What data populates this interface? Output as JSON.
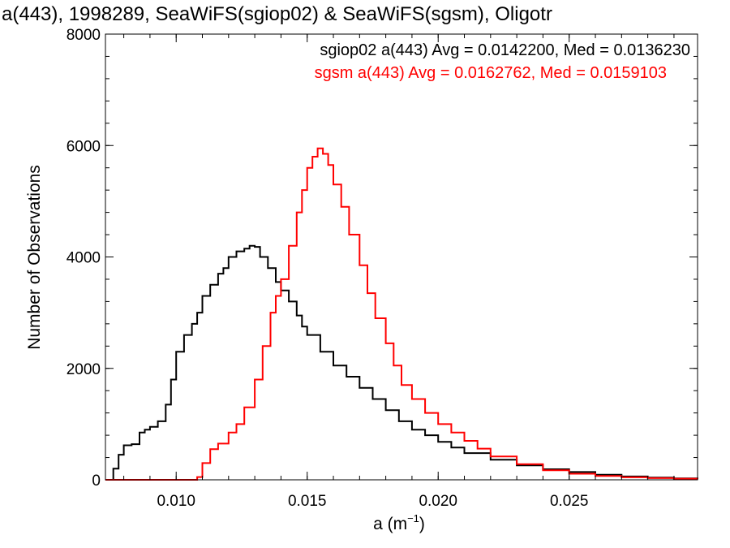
{
  "chart_data": {
    "type": "line",
    "step": true,
    "title": "a(443), 1998289, SeaWiFS(sgiop02) & SeaWiFS(sgsm), Oligotr",
    "xlabel_base": "a (m",
    "xlabel_sup": "−1",
    "xlabel_close": ")",
    "ylabel": "Number of Observations",
    "xlim": [
      0.0073,
      0.0299
    ],
    "ylim": [
      0,
      8000
    ],
    "xticks": [
      0.01,
      0.015,
      0.02,
      0.025
    ],
    "xtick_labels": [
      "0.010",
      "0.015",
      "0.020",
      "0.025"
    ],
    "yticks": [
      0,
      2000,
      4000,
      6000,
      8000
    ],
    "ytick_labels": [
      "0",
      "2000",
      "4000",
      "6000",
      "8000"
    ],
    "grid": false,
    "annotations": [
      {
        "text": "sgiop02 a(443) Avg = 0.0142200, Med = 0.0136230",
        "color": "#000000"
      },
      {
        "text": "sgsm a(443) Avg = 0.0162762, Med = 0.0159103",
        "color": "#ff0000"
      }
    ],
    "series": [
      {
        "name": "sgiop02",
        "color": "#000000",
        "x": [
          0.0073,
          0.0076,
          0.0078,
          0.008,
          0.0083,
          0.0086,
          0.0088,
          0.009,
          0.0093,
          0.0096,
          0.0098,
          0.01,
          0.0103,
          0.0106,
          0.0108,
          0.011,
          0.0113,
          0.0116,
          0.0118,
          0.012,
          0.0123,
          0.0126,
          0.0128,
          0.013,
          0.0132,
          0.0135,
          0.0138,
          0.014,
          0.0143,
          0.0146,
          0.0148,
          0.015,
          0.0155,
          0.016,
          0.0165,
          0.017,
          0.0175,
          0.018,
          0.0185,
          0.019,
          0.0195,
          0.02,
          0.0205,
          0.021,
          0.022,
          0.023,
          0.024,
          0.025,
          0.026,
          0.027,
          0.028,
          0.029,
          0.0299
        ],
        "y": [
          0,
          200,
          450,
          620,
          640,
          850,
          900,
          950,
          1050,
          1350,
          1800,
          2300,
          2600,
          2800,
          3000,
          3300,
          3500,
          3700,
          3800,
          4000,
          4100,
          4150,
          4200,
          4180,
          4000,
          3800,
          3550,
          3400,
          3200,
          2950,
          2750,
          2600,
          2300,
          2050,
          1850,
          1650,
          1450,
          1250,
          1050,
          900,
          800,
          680,
          580,
          480,
          360,
          260,
          190,
          140,
          90,
          60,
          40,
          25,
          10
        ]
      },
      {
        "name": "sgsm",
        "color": "#ff0000",
        "x": [
          0.0073,
          0.01,
          0.0106,
          0.0108,
          0.011,
          0.0113,
          0.0116,
          0.012,
          0.0123,
          0.0126,
          0.013,
          0.0133,
          0.0136,
          0.0138,
          0.014,
          0.0143,
          0.0146,
          0.0148,
          0.015,
          0.0152,
          0.0154,
          0.0156,
          0.0158,
          0.016,
          0.0163,
          0.0166,
          0.017,
          0.0173,
          0.0176,
          0.018,
          0.0183,
          0.0186,
          0.019,
          0.0195,
          0.02,
          0.0205,
          0.021,
          0.0215,
          0.022,
          0.023,
          0.024,
          0.025,
          0.026,
          0.027,
          0.028,
          0.029,
          0.0299
        ],
        "y": [
          0,
          0,
          0,
          50,
          300,
          550,
          650,
          850,
          1000,
          1300,
          1800,
          2400,
          3000,
          3300,
          3600,
          4200,
          4800,
          5200,
          5600,
          5800,
          5950,
          5850,
          5650,
          5300,
          4900,
          4400,
          3850,
          3350,
          2900,
          2450,
          2050,
          1700,
          1450,
          1200,
          1000,
          850,
          700,
          560,
          420,
          280,
          170,
          110,
          70,
          45,
          30,
          20,
          10
        ]
      }
    ]
  }
}
